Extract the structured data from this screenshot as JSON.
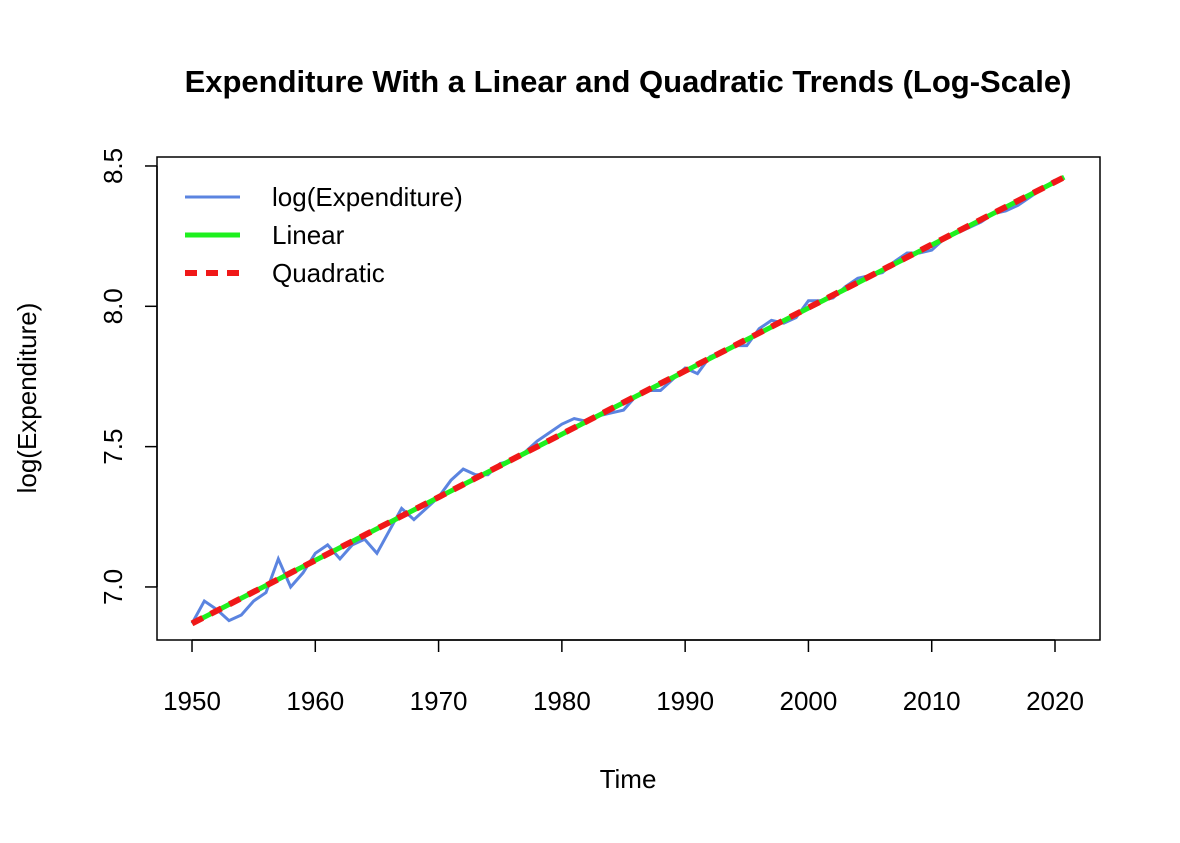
{
  "chart_data": {
    "type": "line",
    "title": "Expenditure With a Linear and Quadratic Trends (Log-Scale)",
    "x_label": "Time",
    "y_label": "log(Expenditure)",
    "xlim": [
      1947.16,
      2023.65
    ],
    "xticks": [
      1950,
      1960,
      1970,
      1980,
      1990,
      2000,
      2010,
      2020
    ],
    "ylim": [
      6.811,
      8.532
    ],
    "yticks": [
      {
        "value": 7,
        "label": "7.0"
      },
      7.5,
      {
        "value": 8,
        "label": "8.0"
      },
      8.5
    ],
    "grid": false,
    "legend": "top-left",
    "series": [
      {
        "name": "log(Expenditure)",
        "color": "#5b84e0",
        "line_width": 3,
        "line_style": "solid",
        "x": [
          1950,
          1951,
          1952,
          1953,
          1954,
          1955,
          1956,
          1957,
          1958,
          1959,
          1960,
          1961,
          1962,
          1963,
          1964,
          1965,
          1966,
          1967,
          1968,
          1969,
          1970,
          1971,
          1972,
          1973,
          1974,
          1975,
          1976,
          1977,
          1978,
          1979,
          1980,
          1981,
          1982,
          1983,
          1984,
          1985,
          1986,
          1987,
          1988,
          1989,
          1990,
          1991,
          1992,
          1993,
          1994,
          1995,
          1996,
          1997,
          1998,
          1999,
          2000,
          2001,
          2002,
          2003,
          2004,
          2005,
          2006,
          2007,
          2008,
          2009,
          2010,
          2011,
          2012,
          2013,
          2014,
          2015,
          2016,
          2017,
          2018,
          2019,
          2020
        ],
        "values": [
          6.87,
          6.95,
          6.92,
          6.88,
          6.9,
          6.95,
          6.98,
          7.1,
          7.0,
          7.05,
          7.12,
          7.15,
          7.1,
          7.15,
          7.17,
          7.12,
          7.2,
          7.28,
          7.24,
          7.28,
          7.32,
          7.38,
          7.42,
          7.4,
          7.4,
          7.44,
          7.45,
          7.48,
          7.52,
          7.55,
          7.58,
          7.6,
          7.59,
          7.61,
          7.62,
          7.63,
          7.68,
          7.7,
          7.7,
          7.74,
          7.78,
          7.76,
          7.82,
          7.84,
          7.86,
          7.86,
          7.92,
          7.95,
          7.94,
          7.96,
          8.02,
          8.02,
          8.03,
          8.07,
          8.1,
          8.11,
          8.12,
          8.16,
          8.19,
          8.19,
          8.2,
          8.24,
          8.26,
          8.28,
          8.3,
          8.33,
          8.34,
          8.36,
          8.39,
          8.42,
          8.45
        ]
      },
      {
        "name": "Linear",
        "color": "#1ef01e",
        "line_width": 5,
        "line_style": "solid",
        "x": [
          1950,
          2020.75
        ],
        "values": [
          6.87,
          8.46
        ]
      },
      {
        "name": "Quadratic",
        "color": "#f01818",
        "line_width": 6,
        "line_style": "dashed",
        "x": [
          1950,
          1960,
          1970,
          1980,
          1990,
          2000,
          2010,
          2020.75
        ],
        "values": [
          6.87,
          7.095,
          7.32,
          7.545,
          7.77,
          7.995,
          8.22,
          8.46
        ]
      }
    ]
  }
}
